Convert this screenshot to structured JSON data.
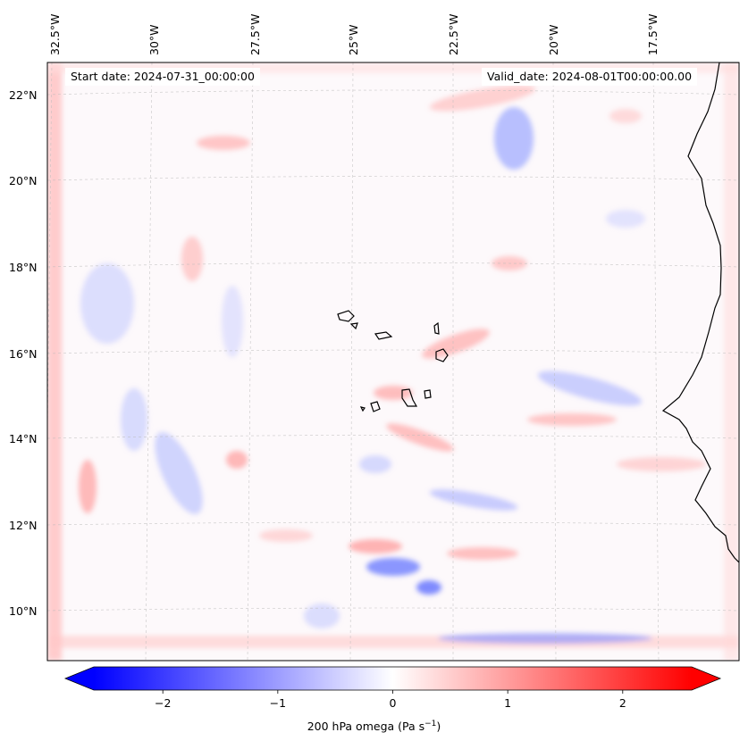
{
  "map": {
    "lon_labels": [
      "32.5°W",
      "30°W",
      "27.5°W",
      "25°W",
      "22.5°W",
      "20°W",
      "17.5°W"
    ],
    "lat_labels": [
      "22°N",
      "20°N",
      "18°N",
      "16°N",
      "14°N",
      "12°N",
      "10°N"
    ],
    "start_date_label": "Start date: 2024-07-31_00:00:00",
    "valid_date_label": "Valid_date: 2024-08-01T00:00:00.00",
    "field_colors": {
      "positive": "#ff0000",
      "negative": "#0000ff",
      "neutral": "#ffffff"
    }
  },
  "colorbar": {
    "ticks": [
      -2,
      -1,
      0,
      1,
      2
    ],
    "tick_labels": [
      "−2",
      "−1",
      "0",
      "1",
      "2"
    ],
    "range": [
      -2.6,
      2.6
    ],
    "label_main": "200 hPa omega (Pa s",
    "label_sup": "−1",
    "label_tail": ")",
    "colormap": "bwr"
  }
}
